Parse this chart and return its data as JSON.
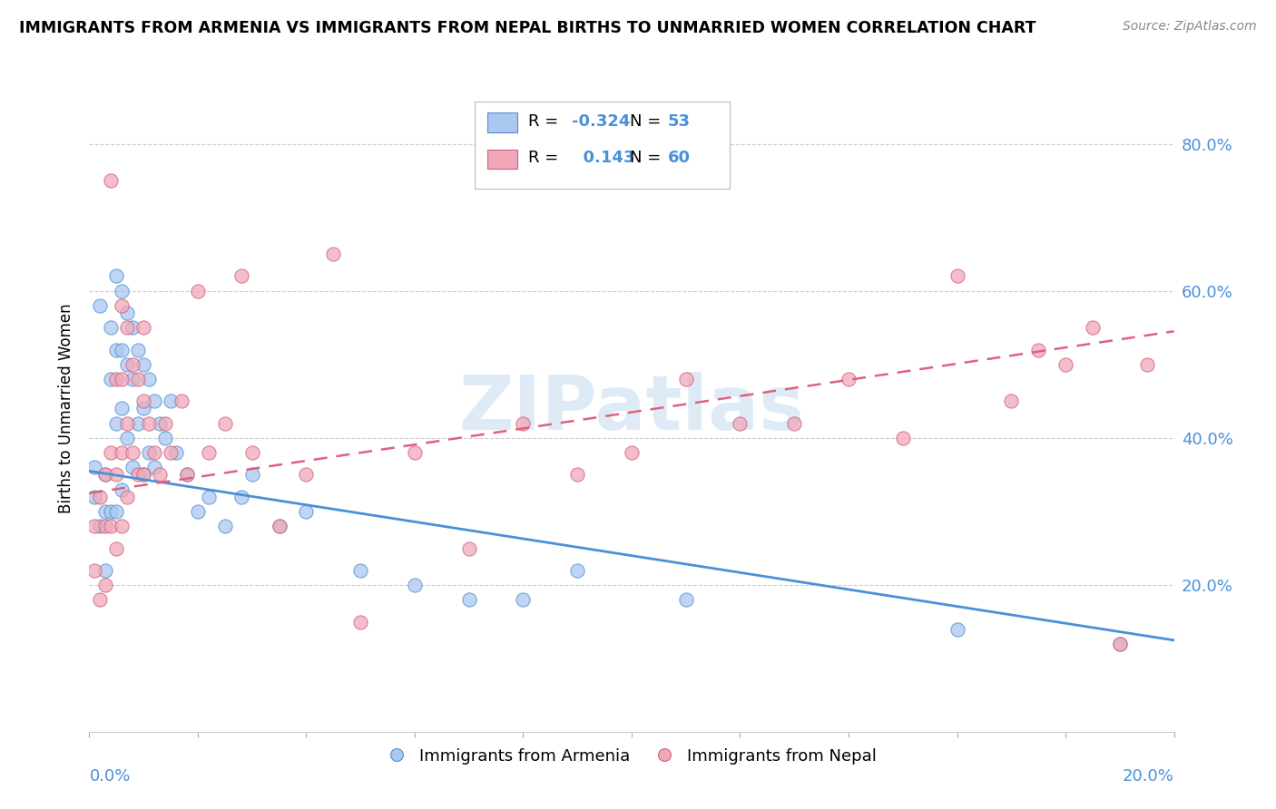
{
  "title": "IMMIGRANTS FROM ARMENIA VS IMMIGRANTS FROM NEPAL BIRTHS TO UNMARRIED WOMEN CORRELATION CHART",
  "source": "Source: ZipAtlas.com",
  "ylabel": "Births to Unmarried Women",
  "y_tick_vals": [
    0.2,
    0.4,
    0.6,
    0.8
  ],
  "x_min": 0.0,
  "x_max": 0.2,
  "y_min": 0.0,
  "y_max": 0.88,
  "color_armenia": "#aac8f0",
  "color_armenia_edge": "#5090d0",
  "color_nepal": "#f0a8b8",
  "color_nepal_edge": "#d06080",
  "color_line_armenia": "#4a90d9",
  "color_line_nepal": "#e06080",
  "watermark_color": "#c8dff0",
  "armenia_x": [
    0.001,
    0.001,
    0.002,
    0.002,
    0.003,
    0.003,
    0.003,
    0.004,
    0.004,
    0.004,
    0.005,
    0.005,
    0.005,
    0.005,
    0.006,
    0.006,
    0.006,
    0.006,
    0.007,
    0.007,
    0.007,
    0.008,
    0.008,
    0.008,
    0.009,
    0.009,
    0.01,
    0.01,
    0.01,
    0.011,
    0.011,
    0.012,
    0.012,
    0.013,
    0.014,
    0.015,
    0.016,
    0.018,
    0.02,
    0.022,
    0.025,
    0.028,
    0.03,
    0.035,
    0.04,
    0.05,
    0.06,
    0.07,
    0.08,
    0.09,
    0.11,
    0.16,
    0.19
  ],
  "armenia_y": [
    0.36,
    0.32,
    0.58,
    0.28,
    0.35,
    0.3,
    0.22,
    0.55,
    0.48,
    0.3,
    0.62,
    0.52,
    0.42,
    0.3,
    0.6,
    0.52,
    0.44,
    0.33,
    0.57,
    0.5,
    0.4,
    0.55,
    0.48,
    0.36,
    0.52,
    0.42,
    0.5,
    0.44,
    0.35,
    0.48,
    0.38,
    0.45,
    0.36,
    0.42,
    0.4,
    0.45,
    0.38,
    0.35,
    0.3,
    0.32,
    0.28,
    0.32,
    0.35,
    0.28,
    0.3,
    0.22,
    0.2,
    0.18,
    0.18,
    0.22,
    0.18,
    0.14,
    0.12
  ],
  "nepal_x": [
    0.001,
    0.001,
    0.002,
    0.002,
    0.003,
    0.003,
    0.003,
    0.004,
    0.004,
    0.004,
    0.005,
    0.005,
    0.005,
    0.006,
    0.006,
    0.006,
    0.006,
    0.007,
    0.007,
    0.007,
    0.008,
    0.008,
    0.009,
    0.009,
    0.01,
    0.01,
    0.01,
    0.011,
    0.012,
    0.013,
    0.014,
    0.015,
    0.017,
    0.018,
    0.02,
    0.022,
    0.025,
    0.028,
    0.03,
    0.035,
    0.04,
    0.045,
    0.05,
    0.06,
    0.07,
    0.08,
    0.09,
    0.1,
    0.11,
    0.12,
    0.13,
    0.14,
    0.15,
    0.16,
    0.17,
    0.175,
    0.18,
    0.185,
    0.19,
    0.195
  ],
  "nepal_y": [
    0.28,
    0.22,
    0.32,
    0.18,
    0.35,
    0.28,
    0.2,
    0.75,
    0.38,
    0.28,
    0.48,
    0.35,
    0.25,
    0.58,
    0.48,
    0.38,
    0.28,
    0.55,
    0.42,
    0.32,
    0.5,
    0.38,
    0.48,
    0.35,
    0.55,
    0.45,
    0.35,
    0.42,
    0.38,
    0.35,
    0.42,
    0.38,
    0.45,
    0.35,
    0.6,
    0.38,
    0.42,
    0.62,
    0.38,
    0.28,
    0.35,
    0.65,
    0.15,
    0.38,
    0.25,
    0.42,
    0.35,
    0.38,
    0.48,
    0.42,
    0.42,
    0.48,
    0.4,
    0.62,
    0.45,
    0.52,
    0.5,
    0.55,
    0.12,
    0.5
  ]
}
